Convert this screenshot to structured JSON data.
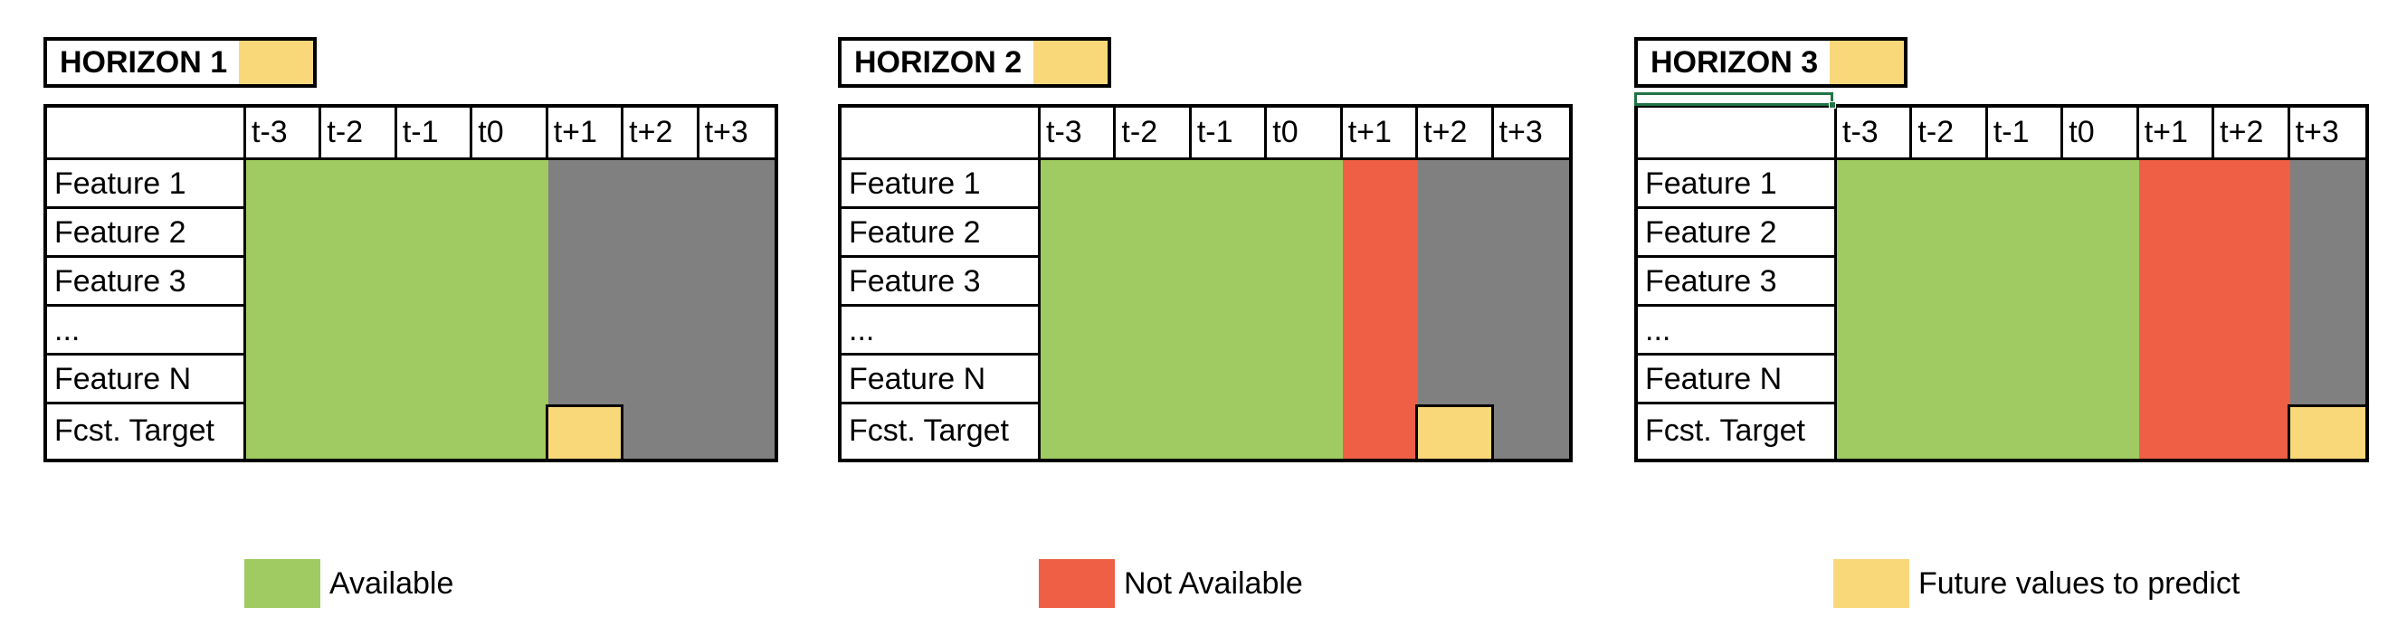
{
  "colors": {
    "available": "#A0CB62",
    "not_available": "#EE5F46",
    "future": "#F9D87A",
    "unknown": "#808080"
  },
  "columns": [
    "t-3",
    "t-2",
    "t-1",
    "t0",
    "t+1",
    "t+2",
    "t+3"
  ],
  "rows": [
    "Feature 1",
    "Feature 2",
    "Feature 3",
    "...",
    "Feature N",
    "Fcst. Target"
  ],
  "panels": [
    {
      "title": "HORIZON 1",
      "feature_states": [
        "available",
        "available",
        "available",
        "available",
        "unknown",
        "unknown",
        "unknown"
      ],
      "target_states": [
        "available",
        "available",
        "available",
        "available",
        "future",
        "unknown",
        "unknown"
      ]
    },
    {
      "title": "HORIZON 2",
      "feature_states": [
        "available",
        "available",
        "available",
        "available",
        "not_available",
        "unknown",
        "unknown"
      ],
      "target_states": [
        "available",
        "available",
        "available",
        "available",
        "not_available",
        "future",
        "unknown"
      ]
    },
    {
      "title": "HORIZON 3",
      "feature_states": [
        "available",
        "available",
        "available",
        "available",
        "not_available",
        "not_available",
        "unknown"
      ],
      "target_states": [
        "available",
        "available",
        "available",
        "available",
        "not_available",
        "not_available",
        "future"
      ]
    }
  ],
  "legend": [
    {
      "state": "available",
      "label": "Available"
    },
    {
      "state": "not_available",
      "label": "Not Available"
    },
    {
      "state": "future",
      "label": "Future values to predict"
    }
  ]
}
